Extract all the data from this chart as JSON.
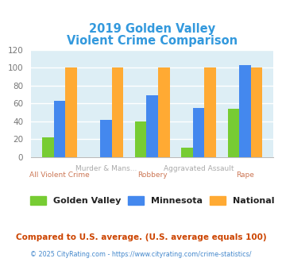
{
  "title_line1": "2019 Golden Valley",
  "title_line2": "Violent Crime Comparison",
  "title_color": "#3399dd",
  "categories": [
    "All Violent Crime",
    "Murder & Mans...",
    "Robbery",
    "Aggravated Assault",
    "Rape"
  ],
  "golden_valley": [
    22,
    0,
    40,
    11,
    54
  ],
  "minnesota": [
    63,
    42,
    69,
    55,
    103
  ],
  "national": [
    100,
    100,
    100,
    100,
    100
  ],
  "colors": {
    "golden_valley": "#77cc33",
    "minnesota": "#4488ee",
    "national": "#ffaa33"
  },
  "ylim": [
    0,
    120
  ],
  "yticks": [
    0,
    20,
    40,
    60,
    80,
    100,
    120
  ],
  "background_color": "#ddeef5",
  "legend_labels": [
    "Golden Valley",
    "Minnesota",
    "National"
  ],
  "footnote1": "Compared to U.S. average. (U.S. average equals 100)",
  "footnote2": "© 2025 CityRating.com - https://www.cityrating.com/crime-statistics/",
  "footnote1_color": "#cc4400",
  "footnote2_color": "#4488cc",
  "xtick_upper": [
    "",
    "Murder & Mans...",
    "",
    "Aggravated Assault",
    ""
  ],
  "xtick_lower": [
    "All Violent Crime",
    "",
    "Robbery",
    "",
    "Rape"
  ],
  "xtick_upper_color": "#aaaaaa",
  "xtick_lower_color": "#cc7755",
  "bar_width": 0.25
}
